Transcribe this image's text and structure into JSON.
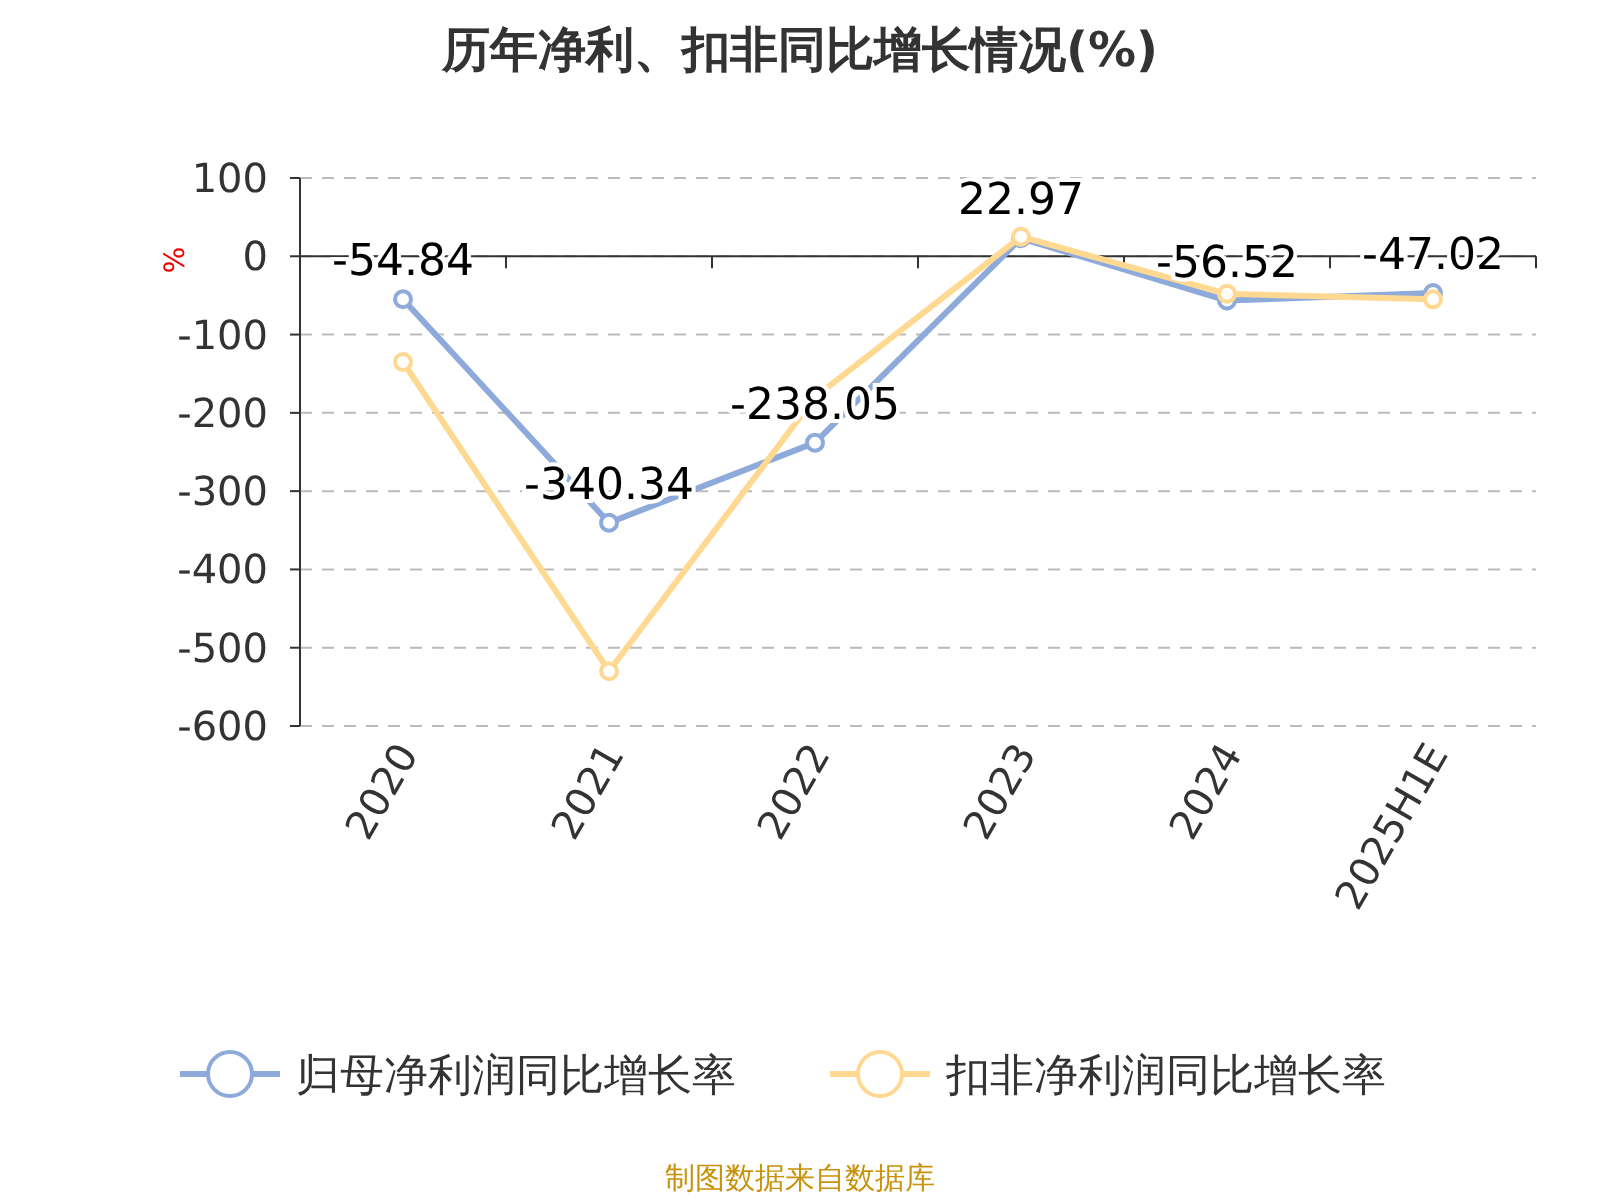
{
  "chart_data": {
    "type": "line",
    "title": "历年净利、扣非同比增长情况(%)",
    "ylabel": "%",
    "categories": [
      "2020",
      "2021",
      "2022",
      "2023",
      "2024",
      "2025H1E"
    ],
    "series": [
      {
        "name": "归母净利润同比增长率",
        "color": "#8eaadb",
        "values": [
          -54.84,
          -340.34,
          -238.05,
          22.97,
          -56.52,
          -47.02
        ],
        "value_labels": [
          "-54.84",
          "-340.34",
          "-238.05",
          "22.97",
          "-56.52",
          "-47.02"
        ]
      },
      {
        "name": "扣非净利润同比增长率",
        "color": "#ffd991",
        "values": [
          -135,
          -530,
          -180,
          25,
          -48,
          -55
        ]
      }
    ],
    "ylim": [
      -600,
      100
    ],
    "yticks": [
      -600,
      -500,
      -400,
      -300,
      -200,
      -100,
      0,
      100
    ],
    "grid": "y",
    "legend": "bottom",
    "marker": "circle",
    "annotations": [
      "制图数据来自数据库"
    ]
  }
}
